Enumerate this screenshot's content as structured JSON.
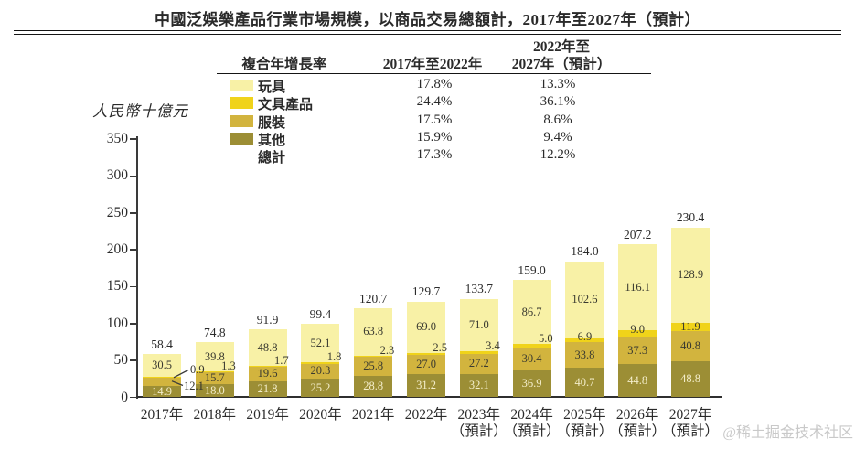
{
  "title": "中國泛娛樂產品行業市場規模，以商品交易總額計，2017年至2027年（預計）",
  "watermark": "@稀土掘金技术社区",
  "cagr_table": {
    "header": {
      "col1": "複合年增長率",
      "col2": "2017年至2022年",
      "col3_line1": "2022年至",
      "col3_line2": "2027年（預計）"
    },
    "rows": [
      {
        "label": "玩具",
        "color": "#f8f1a6",
        "cagr_2017_2022": "17.8%",
        "cagr_2022_2027": "13.3%"
      },
      {
        "label": "文具產品",
        "color": "#f0d31a",
        "cagr_2017_2022": "24.4%",
        "cagr_2022_2027": "36.1%"
      },
      {
        "label": "服裝",
        "color": "#d2b43e",
        "cagr_2017_2022": "17.5%",
        "cagr_2022_2027": "8.6%"
      },
      {
        "label": "其他",
        "color": "#9c8e35",
        "cagr_2017_2022": "15.9%",
        "cagr_2022_2027": "9.4%"
      },
      {
        "label": "總計",
        "color": null,
        "cagr_2017_2022": "17.3%",
        "cagr_2022_2027": "12.2%"
      }
    ]
  },
  "chart_data": {
    "type": "bar",
    "stacked": true,
    "title": "中國泛娛樂產品行業市場規模，以商品交易總額計，2017年至2027年（預計）",
    "ylabel": "人民幣十億元",
    "xlabel": "",
    "ylim": [
      0,
      350
    ],
    "yticks": [
      0,
      50,
      100,
      150,
      200,
      250,
      300,
      350
    ],
    "grid": false,
    "legend_position": "table-top",
    "categories": [
      "2017年",
      "2018年",
      "2019年",
      "2020年",
      "2021年",
      "2022年",
      "2023年",
      "2024年",
      "2025年",
      "2026年",
      "2027年"
    ],
    "forecast_start_index": 6,
    "forecast_suffix": "（預計）",
    "series": [
      {
        "name": "玩具",
        "color": "#f8f1a6",
        "values": [
          30.5,
          39.8,
          48.8,
          52.1,
          63.8,
          69.0,
          71.0,
          86.7,
          102.6,
          116.1,
          128.9
        ]
      },
      {
        "name": "文具產品",
        "color": "#f0d31a",
        "values": [
          0.9,
          1.3,
          1.7,
          1.8,
          2.3,
          2.5,
          3.4,
          5.0,
          6.9,
          9.0,
          11.9
        ]
      },
      {
        "name": "服裝",
        "color": "#d2b43e",
        "values": [
          12.1,
          15.7,
          19.6,
          20.3,
          25.8,
          27.0,
          27.2,
          30.4,
          33.8,
          37.3,
          40.8
        ]
      },
      {
        "name": "其他",
        "color": "#9c8e35",
        "values": [
          14.9,
          18.0,
          21.8,
          25.2,
          28.8,
          31.2,
          32.1,
          36.9,
          40.7,
          44.8,
          48.8
        ]
      }
    ],
    "totals": [
      58.4,
      74.8,
      91.9,
      99.4,
      120.7,
      129.7,
      133.7,
      159.0,
      184.0,
      207.2,
      230.4
    ]
  },
  "colors": {
    "axis": "#3a3a3a",
    "bottom_segment_label": "#f4eecb",
    "dark_label": "#3a3a30",
    "watermark": "#c9c9c9"
  }
}
